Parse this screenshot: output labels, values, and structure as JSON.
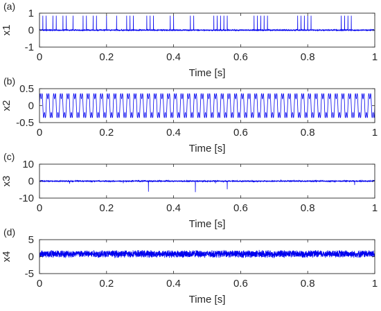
{
  "figure": {
    "panel_labels": [
      "(a)",
      "(b)",
      "(c)",
      "(d)"
    ]
  },
  "colors": {
    "signal": "#0000ee",
    "axes": "#262626",
    "background": "#ffffff"
  },
  "chart_data": [
    {
      "type": "line",
      "panel_label": "(a)",
      "title": "",
      "xlabel": "Time [s]",
      "ylabel": "x1",
      "xlim": [
        0,
        1
      ],
      "ylim": [
        -1,
        1
      ],
      "xticks": [
        0,
        0.2,
        0.4,
        0.6,
        0.8,
        1
      ],
      "xtick_labels": [
        "0",
        "0.2",
        "0.4",
        "0.6",
        "0.8",
        "1"
      ],
      "yticks": [
        -1,
        0,
        1
      ],
      "ytick_labels": [
        "-1",
        "0",
        "1"
      ],
      "grid": false,
      "signal": {
        "description": "periodic impulse train",
        "baseline": 0,
        "impulse_period_s": 0.01,
        "impulse_peak_max": 0.85,
        "impulse_peak_min": -0.45,
        "noise_amplitude": 0.03
      }
    },
    {
      "type": "line",
      "panel_label": "(b)",
      "title": "",
      "xlabel": "Time [s]",
      "ylabel": "x2",
      "xlim": [
        0,
        1
      ],
      "ylim": [
        -0.5,
        0.5
      ],
      "xticks": [
        0,
        0.2,
        0.4,
        0.6,
        0.8,
        1
      ],
      "xtick_labels": [
        "0",
        "0.2",
        "0.4",
        "0.6",
        "0.8",
        "1"
      ],
      "yticks": [
        -0.5,
        0,
        0.5
      ],
      "ytick_labels": [
        "-0.5",
        "0",
        "0.5"
      ],
      "grid": false,
      "signal": {
        "description": "sum of two sinusoids",
        "components": [
          {
            "amplitude": 0.35,
            "frequency_hz": 50
          },
          {
            "amplitude": 0.15,
            "frequency_hz": 150
          }
        ]
      }
    },
    {
      "type": "line",
      "panel_label": "(c)",
      "title": "",
      "xlabel": "Time [s]",
      "ylabel": "x3",
      "xlim": [
        0,
        1
      ],
      "ylim": [
        -10,
        10
      ],
      "xticks": [
        0,
        0.2,
        0.4,
        0.6,
        0.8,
        1
      ],
      "xtick_labels": [
        "0",
        "0.2",
        "0.4",
        "0.6",
        "0.8",
        "1"
      ],
      "yticks": [
        -10,
        0,
        10
      ],
      "ytick_labels": [
        "-10",
        "0",
        "10"
      ],
      "grid": false,
      "signal": {
        "description": "near-zero noise with sparse random spikes",
        "baseline": 0,
        "noise_amplitude": 0.25,
        "spikes": [
          {
            "x": 0.09,
            "y": -1.5
          },
          {
            "x": 0.25,
            "y": -1.2
          },
          {
            "x": 0.325,
            "y": -6.2
          },
          {
            "x": 0.465,
            "y": -6.5
          },
          {
            "x": 0.525,
            "y": -1.3
          },
          {
            "x": 0.56,
            "y": -4.8
          },
          {
            "x": 0.72,
            "y": 0.9
          },
          {
            "x": 0.94,
            "y": -2.3
          }
        ]
      }
    },
    {
      "type": "line",
      "panel_label": "(d)",
      "title": "",
      "xlabel": "Time [s]",
      "ylabel": "x4",
      "xlim": [
        0,
        1
      ],
      "ylim": [
        -5,
        5
      ],
      "xticks": [
        0,
        0.2,
        0.4,
        0.6,
        0.8,
        1
      ],
      "xtick_labels": [
        "0",
        "0.2",
        "0.4",
        "0.6",
        "0.8",
        "1"
      ],
      "yticks": [
        -5,
        0,
        5
      ],
      "ytick_labels": [
        "-5",
        "0",
        "5"
      ],
      "grid": false,
      "signal": {
        "description": "broadband random noise with positive offset",
        "mean": 0.8,
        "noise_amplitude": 1.2
      }
    }
  ]
}
